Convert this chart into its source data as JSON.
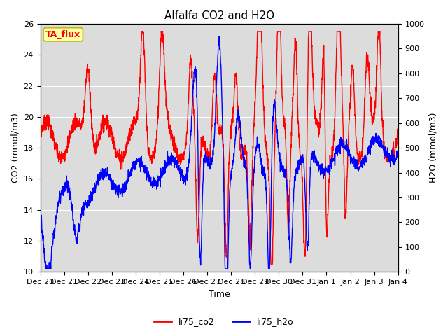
{
  "title": "Alfalfa CO2 and H2O",
  "xlabel": "Time",
  "ylabel_left": "CO2 (mmol/m3)",
  "ylabel_right": "H2O (mmol/m3)",
  "ylim_left": [
    10,
    26
  ],
  "ylim_right": [
    0,
    1000
  ],
  "yticks_left": [
    10,
    12,
    14,
    16,
    18,
    20,
    22,
    24,
    26
  ],
  "yticks_right": [
    0,
    100,
    200,
    300,
    400,
    500,
    600,
    700,
    800,
    900,
    1000
  ],
  "annotation_text": "TA_flux",
  "legend_labels": [
    "li75_co2",
    "li75_h2o"
  ],
  "co2_color": "red",
  "h2o_color": "blue",
  "background_color": "#dcdcdc",
  "title_fontsize": 11,
  "axis_label_fontsize": 9,
  "tick_label_fontsize": 8,
  "legend_fontsize": 9,
  "linewidth": 1.0
}
